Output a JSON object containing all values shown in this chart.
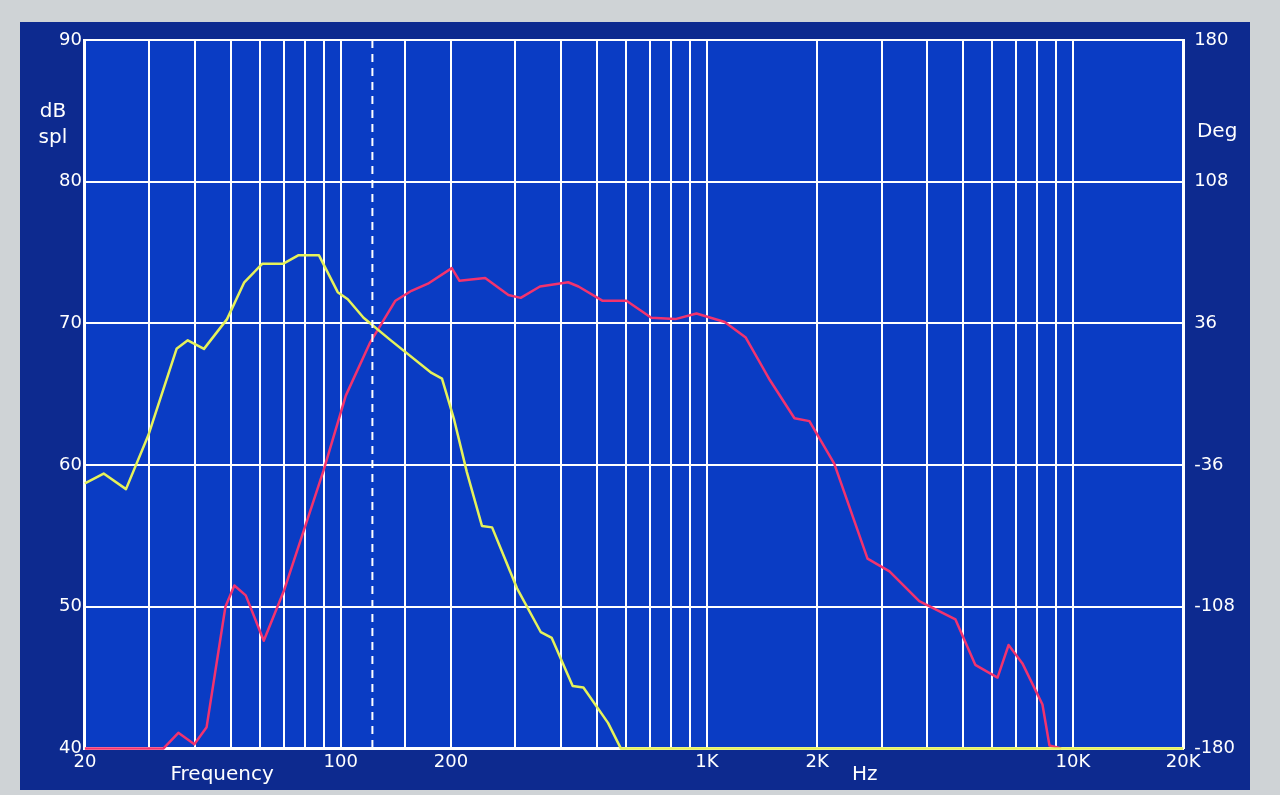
{
  "chart_data": {
    "type": "line",
    "xlabel": "Frequency",
    "ylabel": "dB spl",
    "y2label": "Deg",
    "annotations": [
      "Hz"
    ],
    "log": "x",
    "grid": true,
    "legend": false,
    "marker": "none",
    "line_style": "solid",
    "xlim": [
      20,
      20000
    ],
    "xticks": [
      20,
      {
        "value": 30,
        "label": null
      },
      {
        "value": 40,
        "label": null
      },
      {
        "value": 50,
        "label": null
      },
      {
        "value": 60,
        "label": null
      },
      {
        "value": 70,
        "label": null
      },
      {
        "value": 80,
        "label": null
      },
      {
        "value": 90,
        "label": null
      },
      100,
      {
        "value": 150,
        "label": null
      },
      200,
      {
        "value": 300,
        "label": null
      },
      {
        "value": 400,
        "label": null
      },
      {
        "value": 500,
        "label": null
      },
      {
        "value": 600,
        "label": null
      },
      {
        "value": 700,
        "label": null
      },
      {
        "value": 800,
        "label": null
      },
      {
        "value": 900,
        "label": null
      },
      {
        "value": 1000,
        "label": "1K"
      },
      {
        "value": 2000,
        "label": "2K"
      },
      {
        "value": 3000,
        "label": null
      },
      {
        "value": 4000,
        "label": null
      },
      {
        "value": 5000,
        "label": null
      },
      {
        "value": 6000,
        "label": null
      },
      {
        "value": 7000,
        "label": null
      },
      {
        "value": 8000,
        "label": null
      },
      {
        "value": 9000,
        "label": null
      },
      {
        "value": 10000,
        "label": "10K"
      },
      {
        "value": 20000,
        "label": "20K"
      }
    ],
    "ylim": [
      40,
      90
    ],
    "yticks": [
      40,
      50,
      60,
      70,
      80,
      90
    ],
    "y2lim": [
      -180,
      180
    ],
    "y2ticks": [
      -180,
      -108,
      -36,
      36,
      108,
      180
    ],
    "ref_lines": [
      {
        "axis": "x",
        "value": 122,
        "label": null,
        "line_style": "dashed",
        "color": "#ffffff"
      }
    ],
    "series": [
      {
        "color": "#e6f25a",
        "x": [
          20,
          22.5,
          25.9,
          29.8,
          35.6,
          38.2,
          42.3,
          48.9,
          54.5,
          61,
          69.5,
          76.5,
          87.2,
          98.1,
          104.5,
          115.4,
          137,
          177,
          189,
          204,
          221,
          243,
          259,
          303,
          352,
          377,
          430,
          460,
          537,
          582,
          20000
        ],
        "values": [
          58.7,
          59.4,
          58.3,
          62.1,
          68.2,
          68.8,
          68.2,
          70.3,
          72.9,
          74.2,
          74.2,
          74.8,
          74.8,
          72.2,
          71.7,
          70.4,
          68.8,
          66.5,
          66.1,
          63.2,
          59.5,
          55.7,
          55.6,
          51.3,
          48.2,
          47.8,
          44.4,
          44.3,
          41.8,
          40,
          40
        ]
      },
      {
        "color": "#f2336e",
        "x": [
          20,
          32.8,
          36,
          39.8,
          43,
          48.4,
          51.2,
          55,
          61.6,
          70.1,
          89.7,
          103.2,
          120,
          141,
          156,
          173,
          201,
          211,
          248,
          287,
          310,
          350,
          418,
          446,
          518,
          603,
          705,
          820,
          937,
          1119,
          1277,
          1486,
          1735,
          1906,
          2228,
          2747,
          3154,
          3803,
          4776,
          5410,
          6223,
          6671,
          7277,
          8255,
          8626,
          9290
        ],
        "values": [
          40,
          40,
          41.1,
          40.3,
          41.5,
          50,
          51.5,
          50.8,
          47.6,
          51.2,
          59.6,
          64.9,
          68.6,
          71.6,
          72.3,
          72.8,
          73.9,
          73,
          73.2,
          72,
          71.8,
          72.6,
          72.9,
          72.6,
          71.6,
          71.6,
          70.4,
          70.3,
          70.7,
          70.1,
          69,
          66,
          63.3,
          63.1,
          60.1,
          53.4,
          52.5,
          50.4,
          49.1,
          45.9,
          45,
          47.3,
          46,
          43.1,
          40.2,
          40
        ]
      }
    ]
  }
}
